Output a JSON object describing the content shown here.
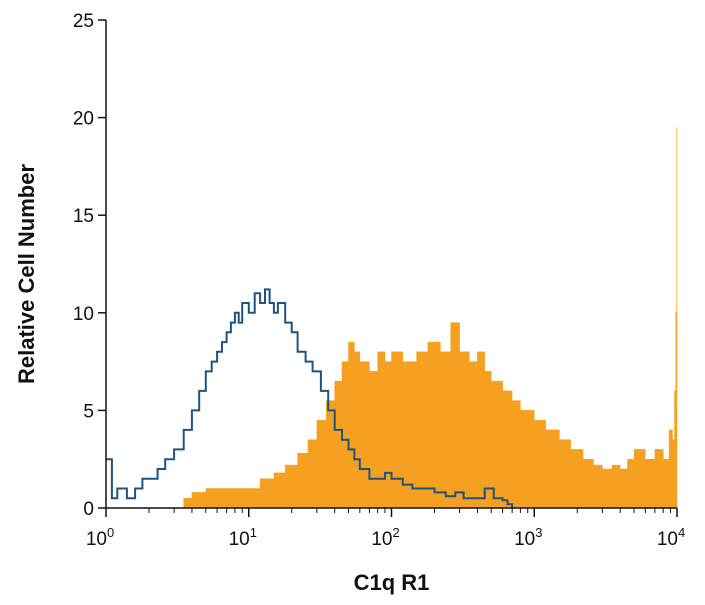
{
  "chart_data": {
    "type": "area",
    "title": "",
    "xlabel": "C1q R1",
    "ylabel": "Relative Cell Number",
    "x_scale": "log",
    "xlim": [
      1,
      10000
    ],
    "ylim": [
      0,
      25
    ],
    "grid": false,
    "x_ticks": [
      {
        "value": 1,
        "base": "10",
        "exp": "0"
      },
      {
        "value": 10,
        "base": "10",
        "exp": "1"
      },
      {
        "value": 100,
        "base": "10",
        "exp": "2"
      },
      {
        "value": 1000,
        "base": "10",
        "exp": "3"
      },
      {
        "value": 10000,
        "base": "10",
        "exp": "4"
      }
    ],
    "y_ticks": [
      "0",
      "5",
      "10",
      "15",
      "20",
      "25"
    ],
    "series": [
      {
        "color": "#f5a020",
        "style": "filled-histogram",
        "x": [
          3.5,
          4.0,
          5.0,
          6.0,
          8.0,
          10.0,
          12.0,
          15.0,
          18.0,
          22.0,
          26.0,
          30.0,
          35.0,
          40.0,
          45.0,
          50.0,
          55.0,
          60.0,
          70.0,
          80.0,
          90.0,
          100.0,
          120.0,
          150.0,
          180.0,
          220.0,
          260.0,
          300.0,
          350.0,
          400.0,
          450.0,
          500.0,
          600.0,
          700.0,
          800.0,
          1000.0,
          1200.0,
          1500.0,
          1800.0,
          2200.0,
          2600.0,
          3000.0,
          3500.0,
          4000.0,
          4500.0,
          5000.0,
          6000.0,
          7000.0,
          8000.0,
          8800.0,
          9300.0,
          9600.0,
          9800.0,
          9900.0,
          9950.0,
          10000.0
        ],
        "y": [
          0.5,
          0.8,
          1.0,
          1.0,
          1.0,
          1.0,
          1.5,
          1.8,
          2.2,
          2.8,
          3.5,
          4.5,
          5.5,
          6.5,
          7.5,
          8.5,
          8.0,
          7.5,
          7.0,
          8.0,
          7.5,
          8.0,
          7.5,
          8.0,
          8.5,
          8.0,
          9.5,
          8.0,
          7.5,
          8.0,
          7.0,
          6.5,
          6.0,
          5.5,
          5.0,
          4.5,
          4.0,
          3.5,
          3.0,
          2.5,
          2.2,
          2.0,
          2.2,
          2.0,
          2.5,
          3.0,
          2.5,
          3.0,
          2.5,
          4.0,
          3.5,
          6.0,
          10.0,
          5.0,
          19.5,
          0.0
        ]
      },
      {
        "color": "#1f5480",
        "style": "step-outline",
        "x": [
          1.0,
          1.1,
          1.2,
          1.4,
          1.6,
          1.8,
          2.0,
          2.3,
          2.6,
          3.0,
          3.5,
          4.0,
          4.5,
          5.0,
          5.5,
          6.0,
          6.5,
          7.0,
          7.5,
          8.0,
          8.5,
          9.0,
          10.0,
          11.0,
          12.0,
          13.0,
          14.0,
          15.0,
          16.0,
          18.0,
          20.0,
          22.0,
          25.0,
          28.0,
          32.0,
          36.0,
          40.0,
          45.0,
          50.0,
          55.0,
          60.0,
          70.0,
          80.0,
          90.0,
          100.0,
          120.0,
          140.0,
          170.0,
          200.0,
          240.0,
          280.0,
          320.0,
          380.0,
          450.0,
          520.0,
          600.0,
          650.0,
          700.0
        ],
        "y": [
          2.5,
          0.5,
          1.0,
          0.5,
          1.0,
          1.5,
          1.5,
          2.0,
          2.5,
          3.0,
          4.0,
          5.0,
          6.0,
          7.0,
          7.5,
          8.0,
          8.5,
          9.0,
          9.5,
          10.0,
          9.5,
          10.5,
          10.0,
          11.0,
          10.5,
          11.2,
          10.5,
          10.0,
          10.5,
          9.5,
          9.0,
          8.0,
          7.5,
          7.0,
          6.0,
          5.0,
          4.0,
          3.5,
          3.0,
          2.5,
          2.0,
          1.5,
          1.5,
          1.8,
          1.5,
          1.2,
          1.0,
          1.0,
          0.8,
          0.6,
          0.8,
          0.5,
          0.5,
          1.0,
          0.5,
          0.4,
          0.2,
          0.0
        ]
      }
    ]
  }
}
